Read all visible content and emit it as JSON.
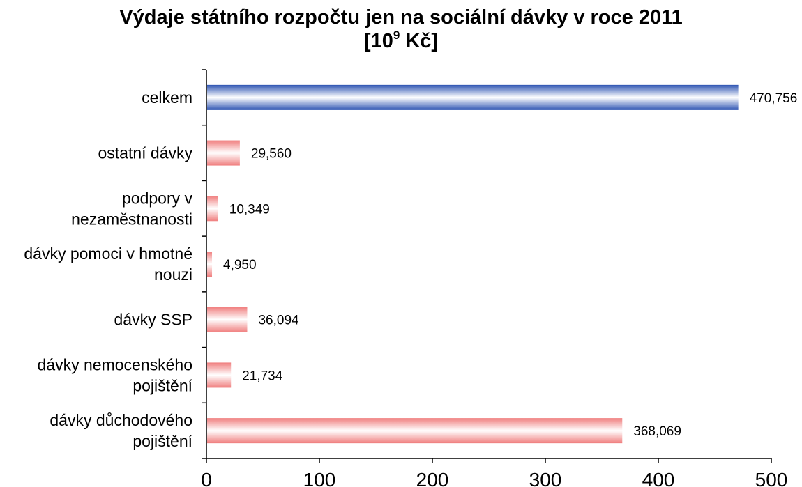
{
  "title": {
    "line1": "Výdaje státního rozpočtu jen na sociální dávky v roce 2011",
    "unit_prefix": "[10",
    "unit_exp": "9",
    "unit_suffix": " Kč]"
  },
  "colors": {
    "total_bar": "#3a64bf",
    "other_bar": "#f08a8a"
  },
  "chart_data": {
    "type": "bar",
    "orientation": "horizontal",
    "title": "Výdaje státního rozpočtu jen na sociální dávky v roce 2011 [10^9 Kč]",
    "categories": [
      "celkem",
      "ostatní dávky",
      "podpory v nezaměstnanosti",
      "dávky pomoci v hmotné nouzi",
      "dávky SSP",
      "dávky nemocenského pojištění",
      "dávky důchodového pojištění"
    ],
    "category_lines": [
      [
        "celkem"
      ],
      [
        "ostatní dávky"
      ],
      [
        "podpory v",
        "nezaměstnanosti"
      ],
      [
        "dávky pomoci v hmotné",
        "nouzi"
      ],
      [
        "dávky SSP"
      ],
      [
        "dávky nemocenského",
        "pojištění"
      ],
      [
        "dávky důchodového",
        "pojištění"
      ]
    ],
    "values": [
      470.756,
      29.56,
      10.349,
      4.95,
      36.094,
      21.734,
      368.069
    ],
    "value_labels": [
      "470,756",
      "29,560",
      "10,349",
      "4,950",
      "36,094",
      "21,734",
      "368,069"
    ],
    "highlight": [
      true,
      false,
      false,
      false,
      false,
      false,
      false
    ],
    "xlim": [
      0,
      500
    ],
    "xticks": [
      0,
      100,
      200,
      300,
      400,
      500
    ],
    "xlabel": "",
    "ylabel": "",
    "grid": false,
    "legend": "none"
  }
}
